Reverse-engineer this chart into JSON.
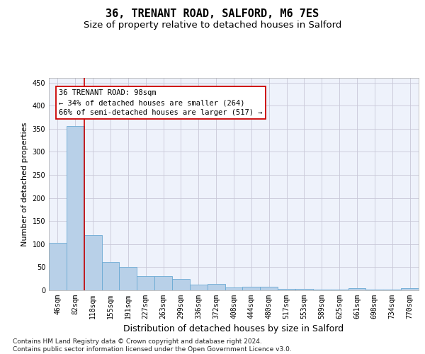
{
  "title": "36, TRENANT ROAD, SALFORD, M6 7ES",
  "subtitle": "Size of property relative to detached houses in Salford",
  "xlabel": "Distribution of detached houses by size in Salford",
  "ylabel": "Number of detached properties",
  "categories": [
    "46sqm",
    "82sqm",
    "118sqm",
    "155sqm",
    "191sqm",
    "227sqm",
    "263sqm",
    "299sqm",
    "336sqm",
    "372sqm",
    "408sqm",
    "444sqm",
    "480sqm",
    "517sqm",
    "553sqm",
    "589sqm",
    "625sqm",
    "661sqm",
    "698sqm",
    "734sqm",
    "770sqm"
  ],
  "values": [
    103,
    355,
    120,
    62,
    50,
    30,
    30,
    25,
    12,
    14,
    6,
    7,
    7,
    3,
    3,
    1,
    1,
    4,
    1,
    1,
    4
  ],
  "bar_color": "#b8d0e8",
  "bar_edgecolor": "#6aaad4",
  "background_color": "#ffffff",
  "plot_background": "#eef2fb",
  "grid_color": "#c8c8d8",
  "annotation_line1": "36 TRENANT ROAD: 98sqm",
  "annotation_line2": "← 34% of detached houses are smaller (264)",
  "annotation_line3": "66% of semi-detached houses are larger (517) →",
  "annotation_box_color": "#ffffff",
  "annotation_box_edgecolor": "#cc0000",
  "vline_color": "#cc0000",
  "vline_x": 1.5,
  "ylim": [
    0,
    460
  ],
  "yticks": [
    0,
    50,
    100,
    150,
    200,
    250,
    300,
    350,
    400,
    450
  ],
  "footnote": "Contains HM Land Registry data © Crown copyright and database right 2024.\nContains public sector information licensed under the Open Government Licence v3.0.",
  "title_fontsize": 11,
  "subtitle_fontsize": 9.5,
  "xlabel_fontsize": 9,
  "ylabel_fontsize": 8,
  "tick_fontsize": 7,
  "annotation_fontsize": 7.5,
  "footnote_fontsize": 6.5
}
